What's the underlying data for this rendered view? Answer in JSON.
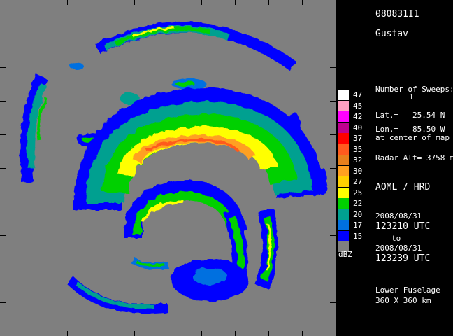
{
  "image": {
    "storm_id": "080831I1",
    "storm_name": "Gustav",
    "sweeps_label": "Number of Sweeps:",
    "sweeps_value": "1",
    "lat_label": "Lat.=",
    "lat_value": "25.54 N",
    "lon_label": "Lon.=",
    "lon_value": "85.50 W",
    "center_note": "at center of map",
    "radar_alt": "Radar Alt= 3758 m",
    "org": "AOML / HRD",
    "start_date": "2008/08/31",
    "start_time": "123210 UTC",
    "to_word": "to",
    "end_date": "2008/08/31",
    "end_time": "123239 UTC",
    "radar": "Lower Fuselage",
    "extent": "360 X 360 km",
    "legend_unit": "dBZ"
  },
  "legend": [
    {
      "label": "47",
      "color": "#ffffff"
    },
    {
      "label": "45",
      "color": "#ff9fc0"
    },
    {
      "label": "42",
      "color": "#ff00ff"
    },
    {
      "label": "40",
      "color": "#c00090"
    },
    {
      "label": "37",
      "color": "#ff0000"
    },
    {
      "label": "35",
      "color": "#ff5a1e"
    },
    {
      "label": "32",
      "color": "#e8801c"
    },
    {
      "label": "30",
      "color": "#ffa020"
    },
    {
      "label": "27",
      "color": "#ffd000"
    },
    {
      "label": "25",
      "color": "#ffff00"
    },
    {
      "label": "22",
      "color": "#00d000"
    },
    {
      "label": "20",
      "color": "#00a090"
    },
    {
      "label": "17",
      "color": "#0070e0"
    },
    {
      "label": "15",
      "color": "#0000ff"
    },
    {
      "label": "",
      "color": "#7f7f7f"
    }
  ]
}
